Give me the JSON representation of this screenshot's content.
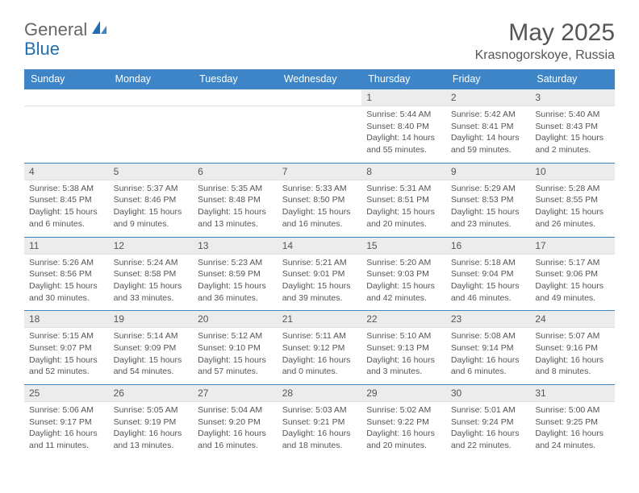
{
  "logo": {
    "text1": "General",
    "text2": "Blue",
    "color1": "#777777",
    "color2": "#1f6fb2"
  },
  "title": "May 2025",
  "location": "Krasnogorskoye, Russia",
  "header_bg": "#3d85c6",
  "daynum_bg": "#ececec",
  "border_color": "#3d85c6",
  "day_headers": [
    "Sunday",
    "Monday",
    "Tuesday",
    "Wednesday",
    "Thursday",
    "Friday",
    "Saturday"
  ],
  "weeks": [
    [
      {
        "empty": true
      },
      {
        "empty": true
      },
      {
        "empty": true
      },
      {
        "empty": true
      },
      {
        "num": "1",
        "sunrise": "5:44 AM",
        "sunset": "8:40 PM",
        "daylight": "14 hours and 55 minutes."
      },
      {
        "num": "2",
        "sunrise": "5:42 AM",
        "sunset": "8:41 PM",
        "daylight": "14 hours and 59 minutes."
      },
      {
        "num": "3",
        "sunrise": "5:40 AM",
        "sunset": "8:43 PM",
        "daylight": "15 hours and 2 minutes."
      }
    ],
    [
      {
        "num": "4",
        "sunrise": "5:38 AM",
        "sunset": "8:45 PM",
        "daylight": "15 hours and 6 minutes."
      },
      {
        "num": "5",
        "sunrise": "5:37 AM",
        "sunset": "8:46 PM",
        "daylight": "15 hours and 9 minutes."
      },
      {
        "num": "6",
        "sunrise": "5:35 AM",
        "sunset": "8:48 PM",
        "daylight": "15 hours and 13 minutes."
      },
      {
        "num": "7",
        "sunrise": "5:33 AM",
        "sunset": "8:50 PM",
        "daylight": "15 hours and 16 minutes."
      },
      {
        "num": "8",
        "sunrise": "5:31 AM",
        "sunset": "8:51 PM",
        "daylight": "15 hours and 20 minutes."
      },
      {
        "num": "9",
        "sunrise": "5:29 AM",
        "sunset": "8:53 PM",
        "daylight": "15 hours and 23 minutes."
      },
      {
        "num": "10",
        "sunrise": "5:28 AM",
        "sunset": "8:55 PM",
        "daylight": "15 hours and 26 minutes."
      }
    ],
    [
      {
        "num": "11",
        "sunrise": "5:26 AM",
        "sunset": "8:56 PM",
        "daylight": "15 hours and 30 minutes."
      },
      {
        "num": "12",
        "sunrise": "5:24 AM",
        "sunset": "8:58 PM",
        "daylight": "15 hours and 33 minutes."
      },
      {
        "num": "13",
        "sunrise": "5:23 AM",
        "sunset": "8:59 PM",
        "daylight": "15 hours and 36 minutes."
      },
      {
        "num": "14",
        "sunrise": "5:21 AM",
        "sunset": "9:01 PM",
        "daylight": "15 hours and 39 minutes."
      },
      {
        "num": "15",
        "sunrise": "5:20 AM",
        "sunset": "9:03 PM",
        "daylight": "15 hours and 42 minutes."
      },
      {
        "num": "16",
        "sunrise": "5:18 AM",
        "sunset": "9:04 PM",
        "daylight": "15 hours and 46 minutes."
      },
      {
        "num": "17",
        "sunrise": "5:17 AM",
        "sunset": "9:06 PM",
        "daylight": "15 hours and 49 minutes."
      }
    ],
    [
      {
        "num": "18",
        "sunrise": "5:15 AM",
        "sunset": "9:07 PM",
        "daylight": "15 hours and 52 minutes."
      },
      {
        "num": "19",
        "sunrise": "5:14 AM",
        "sunset": "9:09 PM",
        "daylight": "15 hours and 54 minutes."
      },
      {
        "num": "20",
        "sunrise": "5:12 AM",
        "sunset": "9:10 PM",
        "daylight": "15 hours and 57 minutes."
      },
      {
        "num": "21",
        "sunrise": "5:11 AM",
        "sunset": "9:12 PM",
        "daylight": "16 hours and 0 minutes."
      },
      {
        "num": "22",
        "sunrise": "5:10 AM",
        "sunset": "9:13 PM",
        "daylight": "16 hours and 3 minutes."
      },
      {
        "num": "23",
        "sunrise": "5:08 AM",
        "sunset": "9:14 PM",
        "daylight": "16 hours and 6 minutes."
      },
      {
        "num": "24",
        "sunrise": "5:07 AM",
        "sunset": "9:16 PM",
        "daylight": "16 hours and 8 minutes."
      }
    ],
    [
      {
        "num": "25",
        "sunrise": "5:06 AM",
        "sunset": "9:17 PM",
        "daylight": "16 hours and 11 minutes."
      },
      {
        "num": "26",
        "sunrise": "5:05 AM",
        "sunset": "9:19 PM",
        "daylight": "16 hours and 13 minutes."
      },
      {
        "num": "27",
        "sunrise": "5:04 AM",
        "sunset": "9:20 PM",
        "daylight": "16 hours and 16 minutes."
      },
      {
        "num": "28",
        "sunrise": "5:03 AM",
        "sunset": "9:21 PM",
        "daylight": "16 hours and 18 minutes."
      },
      {
        "num": "29",
        "sunrise": "5:02 AM",
        "sunset": "9:22 PM",
        "daylight": "16 hours and 20 minutes."
      },
      {
        "num": "30",
        "sunrise": "5:01 AM",
        "sunset": "9:24 PM",
        "daylight": "16 hours and 22 minutes."
      },
      {
        "num": "31",
        "sunrise": "5:00 AM",
        "sunset": "9:25 PM",
        "daylight": "16 hours and 24 minutes."
      }
    ]
  ]
}
